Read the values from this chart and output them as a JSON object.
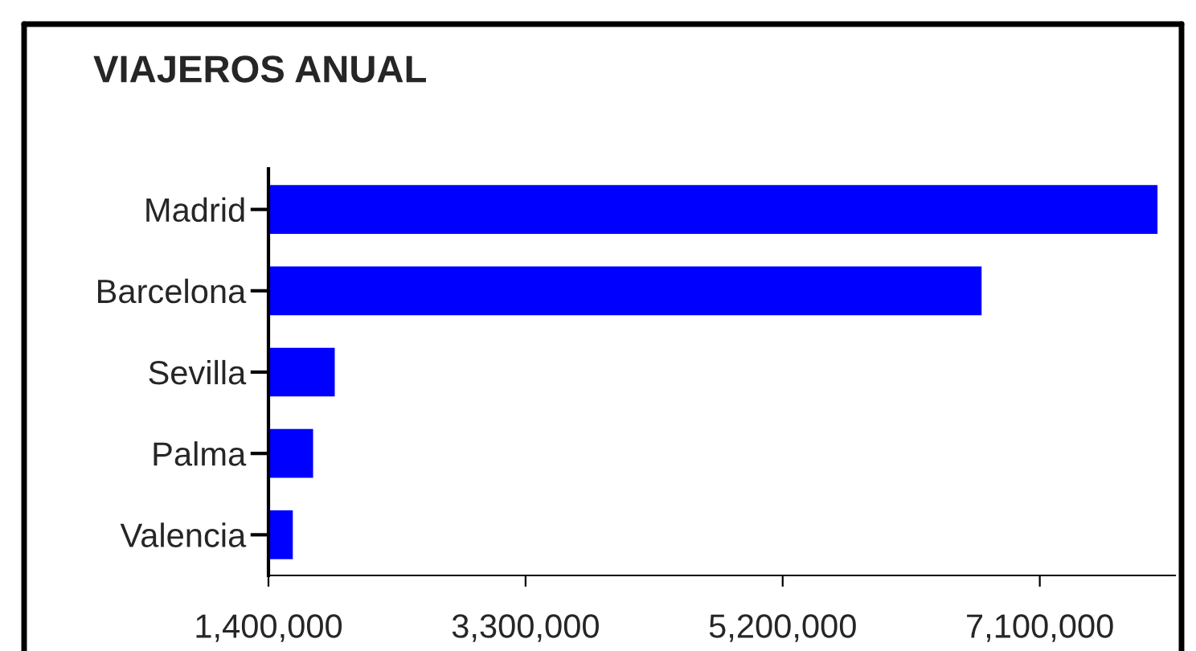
{
  "chart_data": {
    "type": "bar",
    "orientation": "horizontal",
    "title": "VIAJEROS ANUAL",
    "categories": [
      "Madrid",
      "Barcelona",
      "Sevilla",
      "Palma",
      "Valencia"
    ],
    "values": [
      7970000,
      6670000,
      1890000,
      1730000,
      1580000
    ],
    "color": "#0000ff",
    "xlim": [
      1400000,
      8100000
    ],
    "xticks": [
      {
        "value": 1400000,
        "label": "1,400,000"
      },
      {
        "value": 3300000,
        "label": "3,300,000"
      },
      {
        "value": 5200000,
        "label": "5,200,000"
      },
      {
        "value": 7100000,
        "label": "7,100,000"
      }
    ],
    "grid": false,
    "legend": false
  }
}
